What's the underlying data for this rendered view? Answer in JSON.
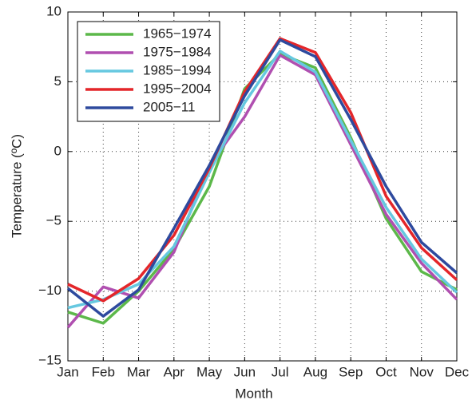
{
  "chart_data": {
    "type": "line",
    "x_label": "Month",
    "y_label": "Temperature (ºC)",
    "categories": [
      "Jan",
      "Feb",
      "Mar",
      "Apr",
      "May",
      "Jun",
      "Jul",
      "Aug",
      "Sep",
      "Oct",
      "Nov",
      "Dec"
    ],
    "series": [
      {
        "name": "1965−1974",
        "color": "#5cb84a",
        "values": [
          -11.5,
          -12.3,
          -10.0,
          -7.0,
          -2.5,
          4.5,
          7.0,
          6.0,
          1.0,
          -4.8,
          -8.6,
          -9.9
        ]
      },
      {
        "name": "1975−1984",
        "color": "#b04fb0",
        "values": [
          -12.6,
          -9.7,
          -10.5,
          -7.2,
          -1.0,
          2.5,
          6.9,
          5.5,
          0.5,
          -4.5,
          -8.0,
          -10.6
        ]
      },
      {
        "name": "1985−1994",
        "color": "#66c8e0",
        "values": [
          -11.2,
          -10.6,
          -9.5,
          -6.8,
          -1.5,
          3.5,
          7.2,
          5.7,
          0.8,
          -4.0,
          -7.7,
          -10.1
        ]
      },
      {
        "name": "1995−2004",
        "color": "#e4262a",
        "values": [
          -9.5,
          -10.7,
          -9.1,
          -6.0,
          -1.2,
          4.3,
          8.1,
          7.1,
          2.8,
          -3.2,
          -6.9,
          -9.2
        ]
      },
      {
        "name": "2005−11",
        "color": "#2e4a9e",
        "values": [
          -9.8,
          -11.8,
          -9.9,
          -5.5,
          -1.0,
          4.0,
          8.0,
          6.8,
          2.3,
          -2.5,
          -6.5,
          -8.7
        ]
      }
    ],
    "ylim": [
      -15,
      10
    ],
    "yticks": [
      {
        "value": -15,
        "label": "−15"
      },
      {
        "value": -10,
        "label": "−10"
      },
      {
        "value": -5,
        "label": "−5"
      },
      0,
      5,
      10
    ],
    "grid": true,
    "legend": "upper-left"
  }
}
